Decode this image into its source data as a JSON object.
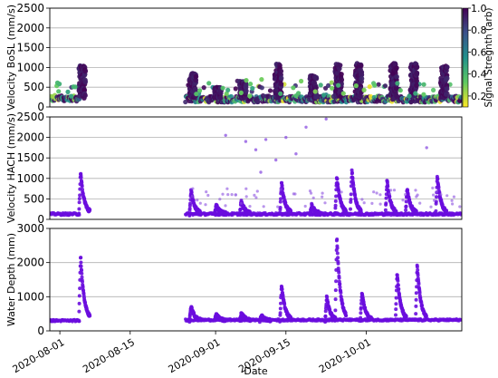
{
  "chart_data": [
    {
      "type": "scatter",
      "ylabel": "Velocity BoSL (mm/s)",
      "ylim": [
        0,
        2500
      ],
      "yticks": [
        0,
        500,
        1000,
        1500,
        2000,
        2500
      ],
      "xlim": [
        "2020-07-30",
        "2020-10-20"
      ],
      "grid": true,
      "colorbar": {
        "label": "Signal Stregnth (arb)",
        "range": [
          0.1,
          1.0
        ],
        "ticks": [
          "0.2",
          "0.4",
          "0.6",
          "0.8",
          "1.0"
        ],
        "colormap": [
          "#fde725",
          "#5ec962",
          "#21918c",
          "#3b528b",
          "#440154"
        ]
      },
      "segments": [
        {
          "start": "2020-07-30",
          "end": "2020-08-05",
          "baseline": 220,
          "peak_date": "2020-08-05",
          "peak": 1050
        },
        {
          "start": "2020-08-26",
          "end": "2020-10-20",
          "baseline": 200,
          "peak_date": "2020-09-13",
          "peak": 1100
        }
      ],
      "events": [
        {
          "date": "2020-08-05",
          "value": 1050
        },
        {
          "date": "2020-08-27",
          "value": 850
        },
        {
          "date": "2020-09-01",
          "value": 500
        },
        {
          "date": "2020-09-06",
          "value": 650
        },
        {
          "date": "2020-09-13",
          "value": 1100
        },
        {
          "date": "2020-09-20",
          "value": 800
        },
        {
          "date": "2020-09-25",
          "value": 1100
        },
        {
          "date": "2020-09-29",
          "value": 1100
        },
        {
          "date": "2020-10-06",
          "value": 1100
        },
        {
          "date": "2020-10-10",
          "value": 1100
        },
        {
          "date": "2020-10-16",
          "value": 1050
        }
      ]
    },
    {
      "type": "scatter",
      "ylabel": "Velocity HACH (mm/s)",
      "ylim": [
        0,
        2500
      ],
      "yticks": [
        0,
        500,
        1000,
        1500,
        2000,
        2500
      ],
      "xlim": [
        "2020-07-30",
        "2020-10-20"
      ],
      "grid": true,
      "color": "#6a0dde",
      "segments": [
        {
          "start": "2020-07-30",
          "end": "2020-08-05",
          "baseline": 130
        },
        {
          "start": "2020-08-26",
          "end": "2020-10-20",
          "baseline": 130
        }
      ],
      "events": [
        {
          "date": "2020-08-05",
          "value": 1150
        },
        {
          "date": "2020-08-27",
          "value": 700
        },
        {
          "date": "2020-09-01",
          "value": 350
        },
        {
          "date": "2020-09-06",
          "value": 450
        },
        {
          "date": "2020-09-14",
          "value": 900
        },
        {
          "date": "2020-09-20",
          "value": 350
        },
        {
          "date": "2020-09-25",
          "value": 1050
        },
        {
          "date": "2020-09-28",
          "value": 1200
        },
        {
          "date": "2020-10-05",
          "value": 950
        },
        {
          "date": "2020-10-09",
          "value": 750
        },
        {
          "date": "2020-10-15",
          "value": 1050
        }
      ],
      "outliers": [
        {
          "date": "2020-09-03",
          "value": 2050
        },
        {
          "date": "2020-09-07",
          "value": 1900
        },
        {
          "date": "2020-09-09",
          "value": 1700
        },
        {
          "date": "2020-09-11",
          "value": 1950
        },
        {
          "date": "2020-09-13",
          "value": 1450
        },
        {
          "date": "2020-09-15",
          "value": 2000
        },
        {
          "date": "2020-09-17",
          "value": 1600
        },
        {
          "date": "2020-09-19",
          "value": 2250
        },
        {
          "date": "2020-09-23",
          "value": 2450
        },
        {
          "date": "2020-10-13",
          "value": 1750
        },
        {
          "date": "2020-09-10",
          "value": 1150
        },
        {
          "date": "2020-09-05",
          "value": 600
        }
      ]
    },
    {
      "type": "scatter",
      "ylabel": "Water Depth (mm)",
      "xlabel": "Date",
      "ylim": [
        0,
        3000
      ],
      "yticks": [
        0,
        1000,
        2000,
        3000
      ],
      "xlim": [
        "2020-07-30",
        "2020-10-20"
      ],
      "xticks": [
        "2020-08-01",
        "2020-08-15",
        "2020-09-01",
        "2020-09-15",
        "2020-10-01"
      ],
      "grid": true,
      "color": "#6a0dde",
      "segments": [
        {
          "start": "2020-07-30",
          "end": "2020-08-05",
          "baseline": 300
        },
        {
          "start": "2020-08-26",
          "end": "2020-10-20",
          "baseline": 320
        }
      ],
      "events": [
        {
          "date": "2020-08-05",
          "value": 2200
        },
        {
          "date": "2020-08-27",
          "value": 720
        },
        {
          "date": "2020-09-01",
          "value": 480
        },
        {
          "date": "2020-09-06",
          "value": 520
        },
        {
          "date": "2020-09-10",
          "value": 450
        },
        {
          "date": "2020-09-14",
          "value": 1350
        },
        {
          "date": "2020-09-23",
          "value": 1000
        },
        {
          "date": "2020-09-25",
          "value": 2750
        },
        {
          "date": "2020-09-30",
          "value": 1150
        },
        {
          "date": "2020-10-07",
          "value": 1700
        },
        {
          "date": "2020-10-11",
          "value": 1950
        }
      ]
    }
  ]
}
